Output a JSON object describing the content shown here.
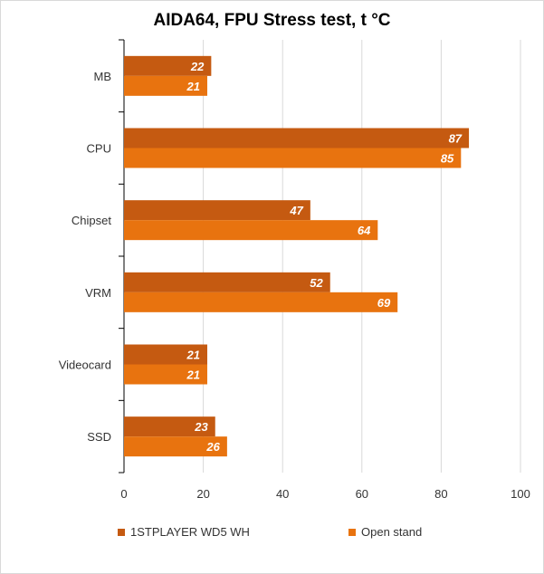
{
  "chart_data": {
    "type": "bar",
    "orientation": "horizontal",
    "title": "AIDA64, FPU Stress test, t °C",
    "categories": [
      "MB",
      "CPU",
      "Chipset",
      "VRM",
      "Videocard",
      "SSD"
    ],
    "series": [
      {
        "name": "1STPLAYER WD5 WH",
        "color": "#c55a11",
        "values": [
          22,
          87,
          47,
          52,
          21,
          23
        ]
      },
      {
        "name": "Open stand",
        "color": "#e8730f",
        "values": [
          21,
          85,
          64,
          69,
          21,
          26
        ]
      }
    ],
    "xlim": [
      0,
      100
    ],
    "xticks": [
      0,
      20,
      40,
      60,
      80,
      100
    ],
    "grid": true,
    "legend_position": "bottom"
  }
}
